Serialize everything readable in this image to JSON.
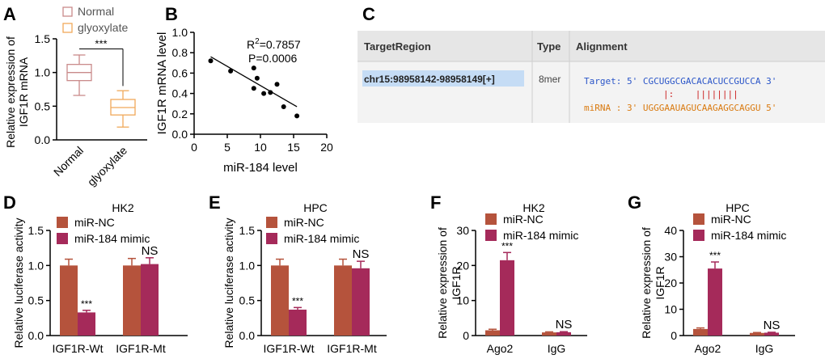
{
  "colors": {
    "normal_box": "#c98a8a",
    "glyoxylate_box": "#f0a95a",
    "nc_bar": "#b5533c",
    "mimic_bar": "#a52a5a",
    "target_text": "#2a55c8",
    "mirna_text": "#d97a10",
    "match_text": "#cc2222",
    "table_header_bg": "#e6e6e6",
    "table_row_bg": "#f3f3f3",
    "table_highlight": "#c5dcf5"
  },
  "panels": {
    "A": {
      "letter": "A"
    },
    "B": {
      "letter": "B"
    },
    "C": {
      "letter": "C"
    },
    "D": {
      "letter": "D"
    },
    "E": {
      "letter": "E"
    },
    "F": {
      "letter": "F"
    },
    "G": {
      "letter": "G"
    }
  },
  "alignment_table": {
    "headers": [
      "TargetRegion",
      "Type",
      "Alignment"
    ],
    "row": {
      "region": "chr15:98958142-98958149[+]",
      "type": "8mer",
      "target_line": "Target: 5' CGCUGGCGACACACUCCGUCCA 3'",
      "match_line": "|:    ||||||||",
      "mirna_line": "miRNA : 3' UGGGAAUAGUCAAGAGGCAGGU 5'"
    }
  },
  "chart_data": [
    {
      "panel": "A",
      "type": "box",
      "categories": [
        "Normal",
        "glyoxylate"
      ],
      "legend": [
        "Normal",
        "glyoxylate"
      ],
      "boxes": [
        {
          "name": "Normal",
          "min": 0.66,
          "q1": 0.88,
          "median": 1.0,
          "q3": 1.12,
          "max": 1.26
        },
        {
          "name": "glyoxylate",
          "min": 0.19,
          "q1": 0.37,
          "median": 0.48,
          "q3": 0.6,
          "max": 0.73
        }
      ],
      "ylabel": "Relative expression of IGF1R mRNA",
      "ylim": [
        0,
        1.5
      ],
      "yticks": [
        "0.0",
        "0.5",
        "1.0",
        "1.5"
      ],
      "annotation": "***"
    },
    {
      "panel": "B",
      "type": "scatter",
      "points": [
        {
          "x": 2.5,
          "y": 0.72
        },
        {
          "x": 5.5,
          "y": 0.62
        },
        {
          "x": 9,
          "y": 0.65
        },
        {
          "x": 9.5,
          "y": 0.55
        },
        {
          "x": 9,
          "y": 0.45
        },
        {
          "x": 10.5,
          "y": 0.4
        },
        {
          "x": 11.5,
          "y": 0.41
        },
        {
          "x": 12.5,
          "y": 0.49
        },
        {
          "x": 13.5,
          "y": 0.27
        },
        {
          "x": 15.5,
          "y": 0.18
        }
      ],
      "fit": {
        "x0": 2.5,
        "y0": 0.76,
        "x1": 15.5,
        "y1": 0.27
      },
      "xlabel": "miR-184 level",
      "ylabel": "IGF1R mRNA level",
      "xlim": [
        0,
        20
      ],
      "ylim": [
        0,
        1.0
      ],
      "xticks": [
        "0",
        "5",
        "10",
        "15",
        "20"
      ],
      "yticks": [
        "0.0",
        "0.2",
        "0.4",
        "0.6",
        "0.8",
        "1.0"
      ],
      "stat_r2_prefix": "R",
      "stat_r2_sup": "2",
      "stat_r2_value": "=0.7857",
      "stat_p": "P=0.0006"
    },
    {
      "panel": "D",
      "type": "bar",
      "title": "HK2",
      "categories": [
        "IGF1R-Wt",
        "IGF1R-Mt"
      ],
      "series": [
        {
          "name": "miR-NC",
          "values": [
            1.0,
            1.0
          ],
          "errors": [
            0.09,
            0.1
          ]
        },
        {
          "name": "miR-184 mimic",
          "values": [
            0.33,
            1.02
          ],
          "errors": [
            0.03,
            0.09
          ]
        }
      ],
      "annotations": [
        "***",
        "NS"
      ],
      "ylabel": "Relative luciferase activity",
      "ylim": [
        0,
        1.5
      ],
      "yticks": [
        "0.0",
        "0.5",
        "1.0",
        "1.5"
      ]
    },
    {
      "panel": "E",
      "type": "bar",
      "title": "HPC",
      "categories": [
        "IGF1R-Wt",
        "IGF1R-Mt"
      ],
      "series": [
        {
          "name": "miR-NC",
          "values": [
            1.0,
            1.0
          ],
          "errors": [
            0.09,
            0.09
          ]
        },
        {
          "name": "miR-184 mimic",
          "values": [
            0.37,
            0.96
          ],
          "errors": [
            0.03,
            0.1
          ]
        }
      ],
      "annotations": [
        "***",
        "NS"
      ],
      "ylabel": "Relative luciferase activity",
      "ylim": [
        0,
        1.5
      ],
      "yticks": [
        "0.0",
        "0.5",
        "1.0",
        "1.5"
      ]
    },
    {
      "panel": "F",
      "type": "bar",
      "title": "HK2",
      "categories": [
        "Ago2",
        "IgG"
      ],
      "series": [
        {
          "name": "miR-NC",
          "values": [
            1.5,
            0.9
          ],
          "errors": [
            0.3,
            0.15
          ]
        },
        {
          "name": "miR-184 mimic",
          "values": [
            21.5,
            0.95
          ],
          "errors": [
            2.2,
            0.15
          ]
        }
      ],
      "annotations": [
        "***",
        "NS"
      ],
      "ylabel": "Relative expression of IGF1R",
      "ylim": [
        0,
        30
      ],
      "yticks": [
        "0",
        "10",
        "20",
        "30"
      ]
    },
    {
      "panel": "G",
      "type": "bar",
      "title": "HPC",
      "categories": [
        "Ago2",
        "IgG"
      ],
      "series": [
        {
          "name": "miR-NC",
          "values": [
            2.5,
            1.0
          ],
          "errors": [
            0.4,
            0.15
          ]
        },
        {
          "name": "miR-184 mimic",
          "values": [
            25.5,
            1.1
          ],
          "errors": [
            2.5,
            0.15
          ]
        }
      ],
      "annotations": [
        "***",
        "NS"
      ],
      "ylabel": "Relative expression of IGF1R",
      "ylim": [
        0,
        40
      ],
      "yticks": [
        "0",
        "10",
        "20",
        "30",
        "40"
      ]
    }
  ]
}
